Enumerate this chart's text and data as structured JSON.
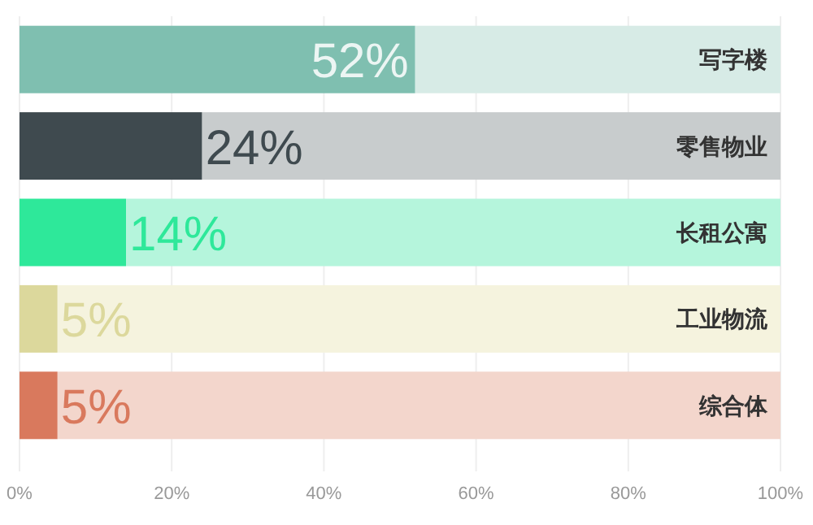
{
  "chart_data": {
    "type": "bar",
    "orientation": "horizontal",
    "stacked": true,
    "grid": "x",
    "categories": [
      "写字楼",
      "零售物业",
      "长租公寓",
      "工业物流",
      "综合体"
    ],
    "series": [
      {
        "colors": [
          "#7fbfb0",
          "#3f4a4f",
          "#2ee89a",
          "#dcd89c",
          "#d9795d"
        ],
        "values": [
          52,
          24,
          14,
          5,
          5
        ],
        "value_labels": [
          "52%",
          "24%",
          "14%",
          "5%",
          "5%"
        ]
      },
      {
        "colors": [
          "#d7ebe6",
          "#c8cccd",
          "#b5f5dc",
          "#f5f3de",
          "#f3d6cc"
        ],
        "values": [
          48,
          76,
          86,
          95,
          95
        ]
      }
    ],
    "xlim": [
      0,
      100
    ],
    "xticks": [
      {
        "value": 0,
        "label": "0%"
      },
      {
        "value": 20,
        "label": "20%"
      },
      {
        "value": 40,
        "label": "40%"
      },
      {
        "value": 60,
        "label": "60%"
      },
      {
        "value": 80,
        "label": "80%"
      },
      {
        "value": 100,
        "label": "100%"
      }
    ]
  }
}
